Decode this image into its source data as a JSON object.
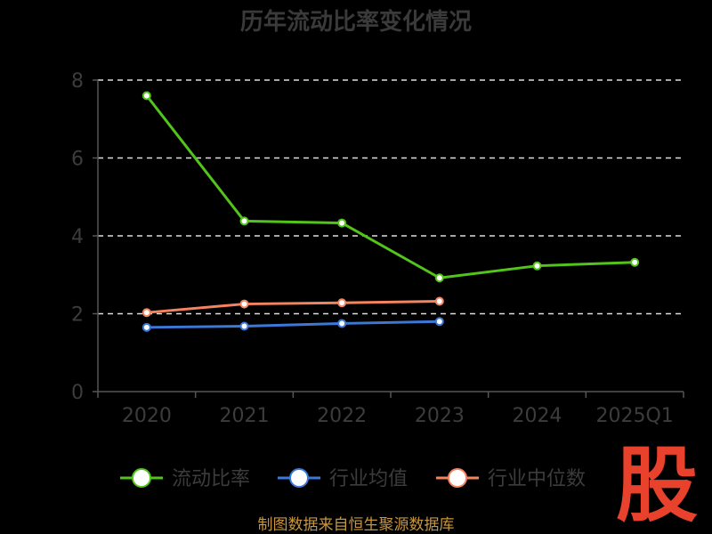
{
  "chart_data": {
    "type": "line",
    "title": "历年流动比率变化情况",
    "categories": [
      "2020",
      "2021",
      "2022",
      "2023",
      "2024",
      "2025Q1"
    ],
    "ylim": [
      0,
      8
    ],
    "yticks": [
      0,
      2,
      4,
      6,
      8
    ],
    "grid": true,
    "legend_position": "bottom",
    "series": [
      {
        "name": "流动比率",
        "values": [
          7.6,
          4.38,
          4.33,
          2.92,
          3.23,
          3.32
        ],
        "color": "#52c41a"
      },
      {
        "name": "行业均值",
        "values": [
          1.65,
          1.68,
          1.75,
          1.8,
          null,
          null
        ],
        "color": "#3b78d8"
      },
      {
        "name": "行业中位数",
        "values": [
          2.03,
          2.25,
          2.28,
          2.32,
          null,
          null
        ],
        "color": "#f4845f"
      }
    ]
  },
  "source": "制图数据来自恒生聚源数据库",
  "logo": {
    "text": "股",
    "color": "#e8412c"
  },
  "colors": {
    "background": "#000000",
    "axis": "#555555",
    "grid": "#dddddd",
    "text": "#3c3c3c"
  }
}
